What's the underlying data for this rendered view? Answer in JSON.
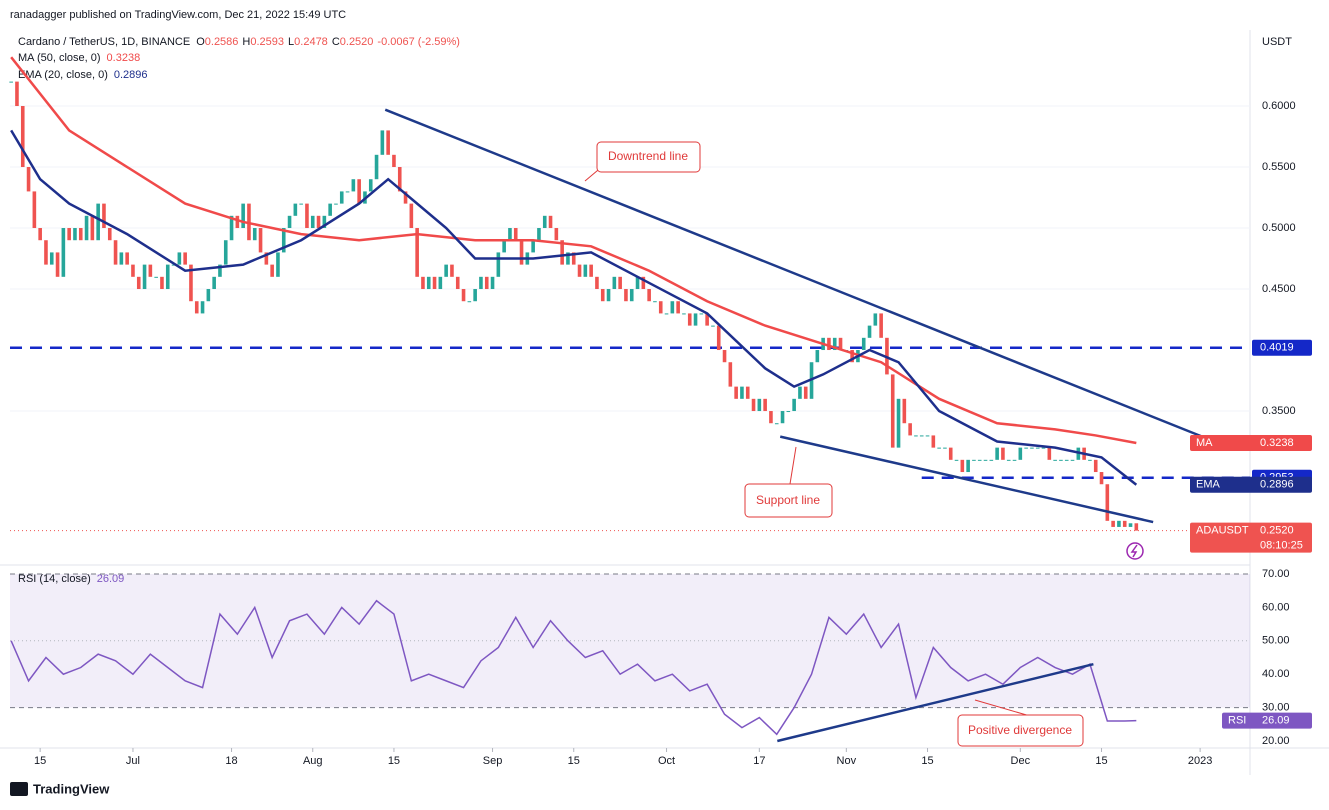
{
  "header": {
    "publisher": "ranadagger published on TradingView.com, Dec 21, 2022 15:49 UTC",
    "symbol": "Cardano / TetherUS, 1D, BINANCE",
    "ohlc": [
      {
        "k": "O",
        "v": "0.2586"
      },
      {
        "k": "H",
        "v": "0.2593"
      },
      {
        "k": "L",
        "v": "0.2478"
      },
      {
        "k": "C",
        "v": "0.2520"
      }
    ],
    "change": "-0.0067 (-2.59%)",
    "currency": "USDT",
    "footer": "TradingView",
    "countdown": "08:10:25",
    "symbol_tag": "ADAUSDT"
  },
  "annotations": [
    {
      "text": "Downtrend line"
    },
    {
      "text": "Support line"
    },
    {
      "text": "Positive divergence"
    }
  ],
  "chart_data": [
    {
      "type": "candlestick",
      "xlim": [
        -0.2,
        213.6
      ],
      "ylim": [
        0.2238,
        0.6623
      ],
      "yticks": [
        {
          "value": 0.6,
          "label": "0.6000"
        },
        {
          "value": 0.55,
          "label": "0.5500"
        },
        {
          "value": 0.5,
          "label": "0.5000"
        },
        {
          "value": 0.45,
          "label": "0.4500"
        },
        {
          "value": 0.35,
          "label": "0.3500"
        }
      ],
      "up_color": "#26a69a",
      "down_color": "#ef5350",
      "candles": {
        "closes": [
          0.62,
          0.6,
          0.55,
          0.53,
          0.5,
          0.49,
          0.47,
          0.48,
          0.46,
          0.5,
          0.49,
          0.5,
          0.49,
          0.51,
          0.49,
          0.52,
          0.5,
          0.49,
          0.47,
          0.48,
          0.47,
          0.46,
          0.45,
          0.47,
          0.46,
          0.46,
          0.45,
          0.47,
          0.47,
          0.48,
          0.47,
          0.44,
          0.43,
          0.44,
          0.45,
          0.46,
          0.47,
          0.49,
          0.51,
          0.5,
          0.52,
          0.49,
          0.5,
          0.48,
          0.47,
          0.46,
          0.48,
          0.5,
          0.51,
          0.52,
          0.52,
          0.5,
          0.51,
          0.5,
          0.51,
          0.52,
          0.52,
          0.53,
          0.53,
          0.54,
          0.52,
          0.53,
          0.54,
          0.56,
          0.58,
          0.56,
          0.55,
          0.53,
          0.52,
          0.5,
          0.46,
          0.45,
          0.46,
          0.45,
          0.46,
          0.47,
          0.46,
          0.45,
          0.44,
          0.44,
          0.45,
          0.46,
          0.45,
          0.46,
          0.48,
          0.49,
          0.5,
          0.49,
          0.47,
          0.48,
          0.49,
          0.5,
          0.51,
          0.5,
          0.49,
          0.47,
          0.48,
          0.47,
          0.46,
          0.47,
          0.46,
          0.45,
          0.44,
          0.45,
          0.46,
          0.45,
          0.44,
          0.45,
          0.46,
          0.45,
          0.44,
          0.44,
          0.43,
          0.43,
          0.44,
          0.43,
          0.43,
          0.42,
          0.43,
          0.43,
          0.42,
          0.42,
          0.4,
          0.39,
          0.37,
          0.36,
          0.37,
          0.36,
          0.35,
          0.36,
          0.35,
          0.34,
          0.34,
          0.35,
          0.35,
          0.36,
          0.37,
          0.36,
          0.39,
          0.4,
          0.41,
          0.4,
          0.41,
          0.4,
          0.4,
          0.39,
          0.4,
          0.41,
          0.42,
          0.43,
          0.41,
          0.38,
          0.32,
          0.36,
          0.34,
          0.33,
          0.33,
          0.33,
          0.33,
          0.32,
          0.32,
          0.32,
          0.31,
          0.31,
          0.3,
          0.31,
          0.31,
          0.31,
          0.31,
          0.31,
          0.32,
          0.31,
          0.31,
          0.31,
          0.32,
          0.32,
          0.32,
          0.32,
          0.32,
          0.31,
          0.31,
          0.31,
          0.31,
          0.31,
          0.32,
          0.31,
          0.31,
          0.3,
          0.29,
          0.26,
          0.255,
          0.26,
          0.255,
          0.258,
          0.252
        ]
      },
      "last_price": {
        "value": 0.252,
        "label": "0.2520"
      },
      "series": [
        {
          "name": "MA (50, close, 0)",
          "tag": "MA",
          "color": "#f04a4a",
          "x": [
            0,
            10,
            20,
            30,
            40,
            50,
            60,
            70,
            80,
            90,
            100,
            110,
            120,
            130,
            140,
            150,
            160,
            170,
            180,
            187,
            194
          ],
          "values": [
            0.64,
            0.58,
            0.55,
            0.52,
            0.505,
            0.495,
            0.49,
            0.495,
            0.49,
            0.49,
            0.485,
            0.465,
            0.44,
            0.42,
            0.405,
            0.39,
            0.36,
            0.34,
            0.335,
            0.33,
            0.3238
          ]
        },
        {
          "name": "EMA (20, close, 0)",
          "tag": "EMA",
          "color": "#1e2f8c",
          "x": [
            0,
            5,
            10,
            20,
            30,
            40,
            50,
            60,
            65,
            70,
            75,
            80,
            90,
            100,
            110,
            120,
            130,
            135,
            140,
            148,
            153,
            160,
            170,
            180,
            188,
            194
          ],
          "values": [
            0.58,
            0.54,
            0.52,
            0.495,
            0.465,
            0.47,
            0.49,
            0.52,
            0.54,
            0.52,
            0.5,
            0.475,
            0.475,
            0.48,
            0.455,
            0.43,
            0.385,
            0.37,
            0.38,
            0.4,
            0.39,
            0.35,
            0.325,
            0.32,
            0.312,
            0.2896
          ]
        }
      ],
      "levels": [
        {
          "value": 0.4019,
          "from": -0.2
        },
        {
          "value": 0.2953,
          "from": 157
        }
      ],
      "trendlines": [
        {
          "x": [
            64.5,
            205.9
          ],
          "y": [
            0.597,
            0.328
          ]
        },
        {
          "x": [
            132.6,
            196.9
          ],
          "y": [
            0.329,
            0.259
          ]
        }
      ]
    },
    {
      "type": "line",
      "xlim": [
        -0.2,
        213.6
      ],
      "ylim": [
        17.9,
        72.7
      ],
      "yticks": [
        {
          "value": 70,
          "label": "70.00"
        },
        {
          "value": 60,
          "label": "60.00"
        },
        {
          "value": 50,
          "label": "50.00"
        },
        {
          "value": 40,
          "label": "40.00"
        },
        {
          "value": 30,
          "label": "30.00"
        },
        {
          "value": 20,
          "label": "20.00"
        }
      ],
      "xticks": [
        {
          "value": 5,
          "label": "15"
        },
        {
          "value": 21,
          "label": "Jul"
        },
        {
          "value": 38,
          "label": "18"
        },
        {
          "value": 52,
          "label": "Aug"
        },
        {
          "value": 66,
          "label": "15"
        },
        {
          "value": 83,
          "label": "Sep"
        },
        {
          "value": 97,
          "label": "15"
        },
        {
          "value": 113,
          "label": "Oct"
        },
        {
          "value": 129,
          "label": "17"
        },
        {
          "value": 144,
          "label": "Nov"
        },
        {
          "value": 158,
          "label": "15"
        },
        {
          "value": 174,
          "label": "Dec"
        },
        {
          "value": 188,
          "label": "15"
        },
        {
          "value": 205,
          "label": "2023"
        }
      ],
      "band": [
        30,
        70
      ],
      "middle": 50,
      "series": [
        {
          "name": "RSI (14, close)",
          "tag": "RSI",
          "color": "#7e57c2",
          "x": [
            0,
            3,
            6,
            9,
            12,
            15,
            18,
            21,
            24,
            27,
            30,
            33,
            36,
            39,
            42,
            45,
            48,
            51,
            54,
            57,
            60,
            63,
            66,
            69,
            72,
            75,
            78,
            81,
            84,
            87,
            90,
            93,
            96,
            99,
            102,
            105,
            108,
            111,
            114,
            117,
            120,
            123,
            126,
            129,
            132,
            135,
            138,
            141,
            144,
            147,
            150,
            153,
            156,
            159,
            162,
            165,
            168,
            171,
            174,
            177,
            180,
            183,
            186,
            189,
            192,
            194
          ],
          "values": [
            50,
            38,
            45,
            40,
            42,
            46,
            44,
            40,
            46,
            42,
            38,
            36,
            58,
            52,
            60,
            45,
            56,
            58,
            52,
            60,
            55,
            62,
            58,
            38,
            40,
            38,
            36,
            44,
            48,
            57,
            48,
            56,
            50,
            45,
            47,
            40,
            43,
            38,
            40,
            35,
            37,
            28,
            24,
            27,
            22,
            30,
            40,
            57,
            52,
            58,
            48,
            55,
            33,
            48,
            42,
            38,
            40,
            37,
            42,
            45,
            42,
            40,
            43,
            26,
            26,
            26.09
          ]
        }
      ],
      "trendlines": [
        {
          "x": [
            132.1,
            186.6
          ],
          "y": [
            20,
            43
          ]
        }
      ]
    }
  ]
}
